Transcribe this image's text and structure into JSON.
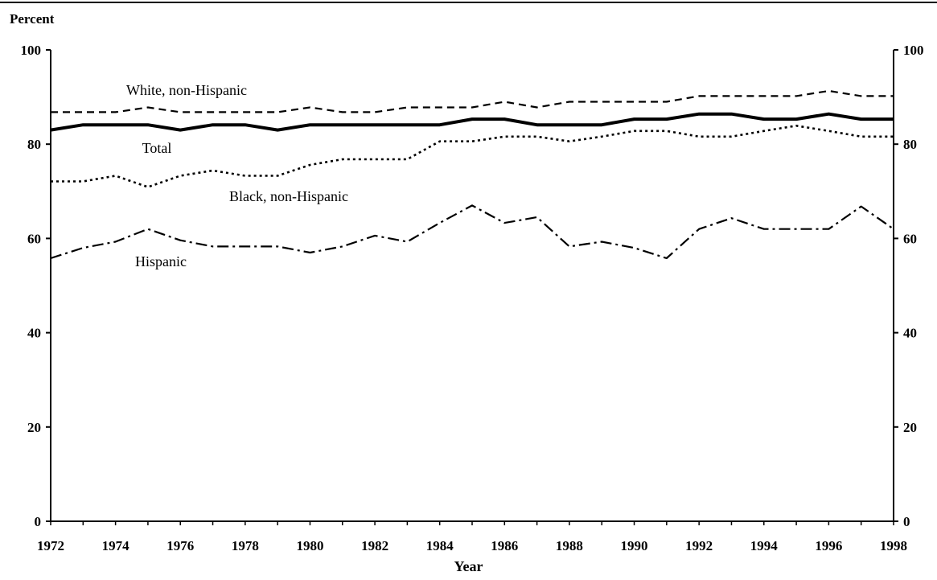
{
  "chart_data": {
    "type": "line",
    "title": "",
    "ylabel": "Percent",
    "xlabel": "Year",
    "x": [
      1972,
      1973,
      1974,
      1975,
      1976,
      1977,
      1978,
      1979,
      1980,
      1981,
      1982,
      1983,
      1984,
      1985,
      1986,
      1987,
      1988,
      1989,
      1990,
      1991,
      1992,
      1993,
      1994,
      1995,
      1996,
      1997,
      1998
    ],
    "xlim": [
      1972,
      1998
    ],
    "ylim": [
      0,
      100
    ],
    "x_ticks": [
      1972,
      1974,
      1976,
      1978,
      1980,
      1982,
      1984,
      1986,
      1988,
      1990,
      1992,
      1994,
      1996,
      1998
    ],
    "y_ticks": [
      0,
      20,
      40,
      60,
      80,
      100
    ],
    "grid": false,
    "series": [
      {
        "name": "White, non-Hispanic",
        "style": "dashed",
        "values": [
          86.8,
          86.8,
          86.8,
          87.8,
          86.8,
          86.8,
          86.8,
          86.8,
          87.8,
          86.8,
          86.8,
          87.8,
          87.8,
          87.8,
          89.0,
          87.8,
          89.0,
          89.0,
          89.0,
          89.0,
          90.2,
          90.2,
          90.2,
          90.2,
          91.3,
          90.2,
          90.2
        ]
      },
      {
        "name": "Total",
        "style": "solid-bold",
        "values": [
          83.0,
          84.1,
          84.1,
          84.1,
          83.0,
          84.1,
          84.1,
          83.0,
          84.1,
          84.1,
          84.1,
          84.1,
          84.1,
          85.3,
          85.3,
          84.1,
          84.1,
          84.1,
          85.3,
          85.3,
          86.4,
          86.4,
          85.3,
          85.3,
          86.4,
          85.3,
          85.3
        ]
      },
      {
        "name": "Black, non-Hispanic",
        "style": "dotted",
        "values": [
          72.1,
          72.1,
          73.3,
          70.9,
          73.3,
          74.4,
          73.3,
          73.3,
          75.6,
          76.8,
          76.8,
          76.8,
          80.6,
          80.6,
          81.6,
          81.6,
          80.6,
          81.6,
          82.8,
          82.8,
          81.6,
          81.6,
          82.8,
          83.9,
          82.8,
          81.6,
          81.6
        ]
      },
      {
        "name": "Hispanic",
        "style": "dash-dot",
        "values": [
          55.8,
          58.0,
          59.3,
          62.0,
          59.6,
          58.3,
          58.3,
          58.3,
          57.0,
          58.3,
          60.6,
          59.3,
          63.3,
          67.0,
          63.3,
          64.5,
          58.3,
          59.3,
          58.0,
          55.8,
          62.0,
          64.3,
          62.0,
          62.0,
          62.0,
          66.8,
          62.0
        ]
      }
    ],
    "annotations": [
      "White, non-Hispanic",
      "Total",
      "Black, non-Hispanic",
      "Hispanic"
    ]
  }
}
